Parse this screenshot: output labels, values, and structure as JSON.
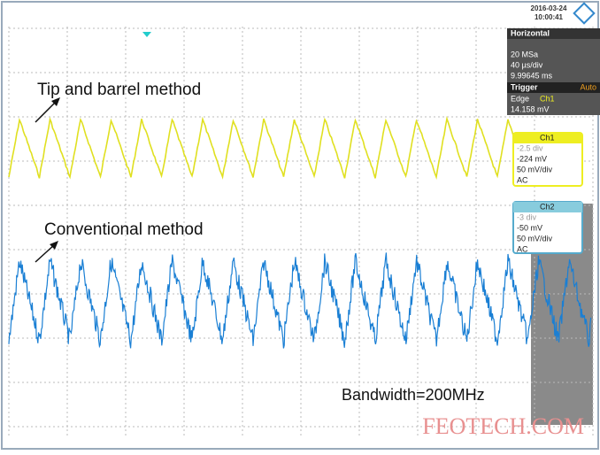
{
  "header": {
    "date": "2016-03-24",
    "time": "10:00:41"
  },
  "horizontal": {
    "title": "Horizontal",
    "sample_rate": "20 MSa",
    "time_scale": "40 µs/div",
    "position": "9.99645 ms"
  },
  "trigger": {
    "title": "Trigger",
    "mode": "Auto",
    "type": "Edge",
    "source": "Ch1",
    "level": "14.158 mV"
  },
  "channels": [
    {
      "name": "Ch1",
      "offset_div": "-2.5 div",
      "offset": "-224 mV",
      "scale": "50 mV/div",
      "coupling": "AC"
    },
    {
      "name": "Ch2",
      "offset_div": "-3 div",
      "offset": "-50 mV",
      "scale": "50 mV/div",
      "coupling": "AC"
    }
  ],
  "annotations": {
    "top": "Tip and barrel method",
    "bottom": "Conventional method",
    "bandwidth": "Bandwidth=200MHz"
  },
  "watermark": "FEOTECH.COM"
}
